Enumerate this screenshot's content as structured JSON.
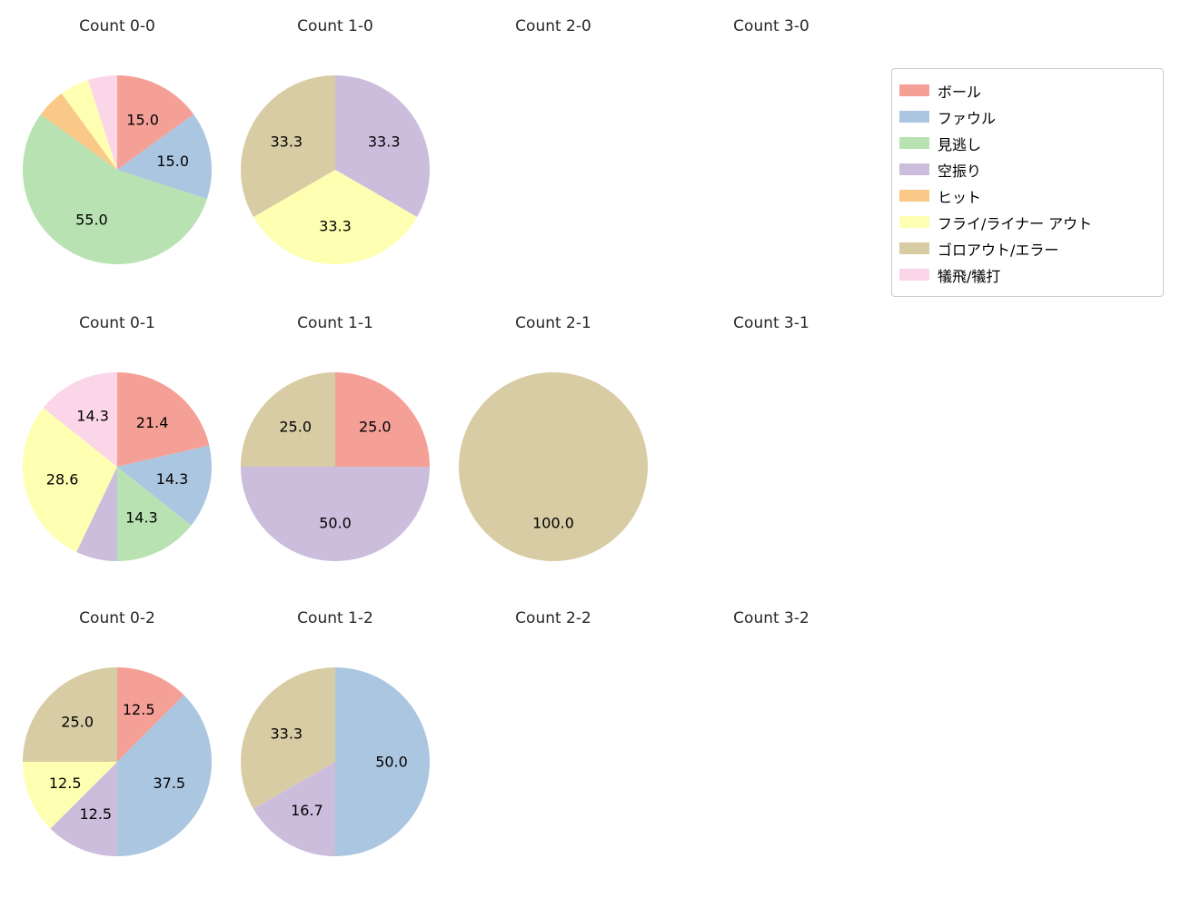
{
  "figure": {
    "background": "#ffffff",
    "title_color": "#262626",
    "label_color": "#000000"
  },
  "legend": {
    "items": [
      {
        "label": "ボール",
        "color": "#f5a097"
      },
      {
        "label": "ファウル",
        "color": "#abc6e0"
      },
      {
        "label": "見逃し",
        "color": "#b9e2b2"
      },
      {
        "label": "空振り",
        "color": "#cdbddd"
      },
      {
        "label": "ヒット",
        "color": "#fac887"
      },
      {
        "label": "フライ/ライナー アウト",
        "color": "#feffb0"
      },
      {
        "label": "ゴロアウト/エラー",
        "color": "#d8cca4"
      },
      {
        "label": "犠飛/犠打",
        "color": "#fbd6e8"
      }
    ]
  },
  "chart_data": [
    {
      "type": "pie",
      "title": "Count 0-0",
      "start_angle": "top",
      "direction": "clockwise",
      "slices": [
        {
          "category": "ボール",
          "value": 15.0,
          "label": "15.0"
        },
        {
          "category": "ファウル",
          "value": 15.0,
          "label": "15.0"
        },
        {
          "category": "見逃し",
          "value": 55.0,
          "label": "55.0"
        },
        {
          "category": "ヒット",
          "value": 5.0,
          "label": ""
        },
        {
          "category": "フライ/ライナー アウト",
          "value": 5.0,
          "label": ""
        },
        {
          "category": "犠飛/犠打",
          "value": 5.0,
          "label": ""
        }
      ]
    },
    {
      "type": "pie",
      "title": "Count 1-0",
      "start_angle": "top",
      "direction": "clockwise",
      "slices": [
        {
          "category": "空振り",
          "value": 33.3,
          "label": "33.3"
        },
        {
          "category": "フライ/ライナー アウト",
          "value": 33.3,
          "label": "33.3"
        },
        {
          "category": "ゴロアウト/エラー",
          "value": 33.3,
          "label": "33.3"
        }
      ]
    },
    {
      "type": "pie",
      "title": "Count 2-0",
      "start_angle": "top",
      "direction": "clockwise",
      "slices": []
    },
    {
      "type": "pie",
      "title": "Count 3-0",
      "start_angle": "top",
      "direction": "clockwise",
      "slices": []
    },
    {
      "type": "pie",
      "title": "Count 0-1",
      "start_angle": "top",
      "direction": "clockwise",
      "slices": [
        {
          "category": "ボール",
          "value": 21.4,
          "label": "21.4"
        },
        {
          "category": "ファウル",
          "value": 14.3,
          "label": "14.3"
        },
        {
          "category": "見逃し",
          "value": 14.3,
          "label": "14.3"
        },
        {
          "category": "空振り",
          "value": 7.1,
          "label": ""
        },
        {
          "category": "フライ/ライナー アウト",
          "value": 28.6,
          "label": "28.6"
        },
        {
          "category": "犠飛/犠打",
          "value": 14.3,
          "label": "14.3"
        }
      ]
    },
    {
      "type": "pie",
      "title": "Count 1-1",
      "start_angle": "top",
      "direction": "clockwise",
      "slices": [
        {
          "category": "ボール",
          "value": 25.0,
          "label": "25.0"
        },
        {
          "category": "空振り",
          "value": 50.0,
          "label": "50.0"
        },
        {
          "category": "ゴロアウト/エラー",
          "value": 25.0,
          "label": "25.0"
        }
      ]
    },
    {
      "type": "pie",
      "title": "Count 2-1",
      "start_angle": "top",
      "direction": "clockwise",
      "slices": [
        {
          "category": "ゴロアウト/エラー",
          "value": 100.0,
          "label": "100.0"
        }
      ]
    },
    {
      "type": "pie",
      "title": "Count 3-1",
      "start_angle": "top",
      "direction": "clockwise",
      "slices": []
    },
    {
      "type": "pie",
      "title": "Count 0-2",
      "start_angle": "top",
      "direction": "clockwise",
      "slices": [
        {
          "category": "ボール",
          "value": 12.5,
          "label": "12.5"
        },
        {
          "category": "ファウル",
          "value": 37.5,
          "label": "37.5"
        },
        {
          "category": "空振り",
          "value": 12.5,
          "label": "12.5"
        },
        {
          "category": "フライ/ライナー アウト",
          "value": 12.5,
          "label": "12.5"
        },
        {
          "category": "ゴロアウト/エラー",
          "value": 25.0,
          "label": "25.0"
        }
      ]
    },
    {
      "type": "pie",
      "title": "Count 1-2",
      "start_angle": "top",
      "direction": "clockwise",
      "slices": [
        {
          "category": "ファウル",
          "value": 50.0,
          "label": "50.0"
        },
        {
          "category": "空振り",
          "value": 16.7,
          "label": "16.7"
        },
        {
          "category": "ゴロアウト/エラー",
          "value": 33.3,
          "label": "33.3"
        }
      ]
    },
    {
      "type": "pie",
      "title": "Count 2-2",
      "start_angle": "top",
      "direction": "clockwise",
      "slices": []
    },
    {
      "type": "pie",
      "title": "Count 3-2",
      "start_angle": "top",
      "direction": "clockwise",
      "slices": []
    }
  ]
}
